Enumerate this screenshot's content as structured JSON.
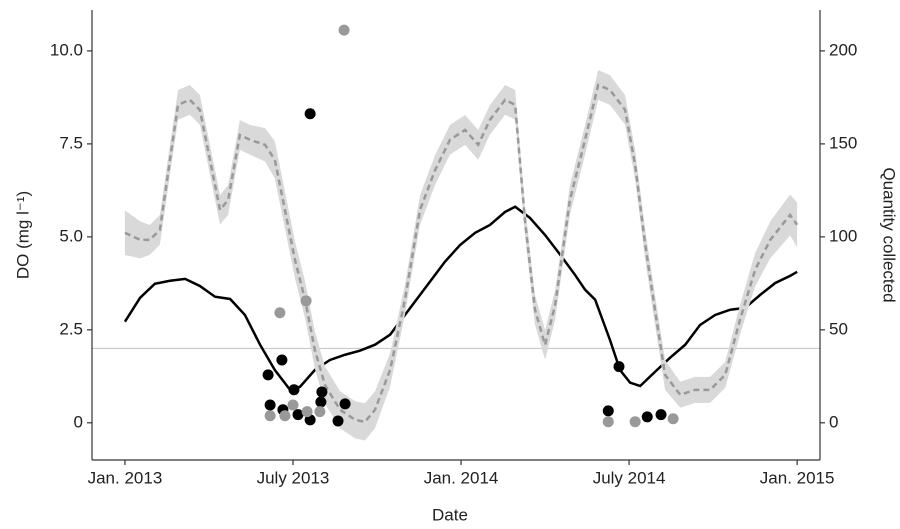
{
  "chart_data": {
    "type": "line",
    "xlabel": "Date",
    "ylabel": "DO (mg l⁻¹)",
    "y2label": "Quantity collected",
    "xlim": [
      2012.902,
      2015.068
    ],
    "xticks": [
      {
        "value": 2013,
        "label": "Jan. 2013"
      },
      {
        "value": 2013.5,
        "label": "July 2013"
      },
      {
        "value": 2014,
        "label": "Jan. 2014"
      },
      {
        "value": 2014.5,
        "label": "July 2014"
      },
      {
        "value": 2015,
        "label": "Jan. 2015"
      }
    ],
    "ylim": [
      -1,
      11.1
    ],
    "yticks": [
      0,
      2.5,
      {
        "value": 5,
        "label": "5.0"
      },
      7.5,
      {
        "value": 10,
        "label": "10.0"
      }
    ],
    "y2lim": [
      -20,
      222
    ],
    "y2ticks": [
      0,
      50,
      100,
      150,
      200
    ],
    "hline": {
      "value": 2,
      "color": "#c8c8c8"
    },
    "series": [
      {
        "type": "line",
        "color": "#000000",
        "x": [
          2013.0,
          2013.045,
          2013.089,
          2013.134,
          2013.179,
          2013.223,
          2013.268,
          2013.313,
          2013.357,
          2013.402,
          2013.446,
          2013.491,
          2013.521,
          2013.565,
          2013.61,
          2013.655,
          2013.699,
          2013.744,
          2013.789,
          2013.833,
          2013.878,
          2013.923,
          2013.952,
          2013.997,
          2014.042,
          2014.086,
          2014.131,
          2014.161,
          2014.205,
          2014.25,
          2014.295,
          2014.339,
          2014.369,
          2014.399,
          2014.443,
          2014.473,
          2014.503,
          2014.533,
          2014.577,
          2014.622,
          2014.667,
          2014.711,
          2014.756,
          2014.801,
          2014.845,
          2014.89,
          2014.935,
          2014.979,
          2015.0
        ],
        "values": [
          2.72,
          3.36,
          3.74,
          3.82,
          3.87,
          3.68,
          3.39,
          3.33,
          2.9,
          2.1,
          1.42,
          0.89,
          0.97,
          1.42,
          1.69,
          1.83,
          1.94,
          2.1,
          2.37,
          2.9,
          3.44,
          3.98,
          4.33,
          4.78,
          5.11,
          5.32,
          5.67,
          5.81,
          5.51,
          5.05,
          4.52,
          3.98,
          3.58,
          3.31,
          2.23,
          1.42,
          1.08,
          0.99,
          1.37,
          1.75,
          2.1,
          2.63,
          2.9,
          3.04,
          3.09,
          3.44,
          3.76,
          3.95,
          4.06
        ]
      },
      {
        "type": "line",
        "color": "#999999",
        "band_color": "#d9d9d9",
        "axis": "y2",
        "dashed": true,
        "x": [
          2013.0,
          2013.045,
          2013.074,
          2013.104,
          2013.134,
          2013.158,
          2013.193,
          2013.223,
          2013.253,
          2013.283,
          2013.307,
          2013.342,
          2013.372,
          2013.417,
          2013.446,
          2013.476,
          2013.506,
          2013.536,
          2013.565,
          2013.595,
          2013.64,
          2013.685,
          2013.714,
          2013.744,
          2013.789,
          2013.833,
          2013.878,
          2013.923,
          2013.967,
          2014.012,
          2014.051,
          2014.086,
          2014.131,
          2014.161,
          2014.19,
          2014.22,
          2014.25,
          2014.28,
          2014.324,
          2014.369,
          2014.408,
          2014.443,
          2014.488,
          2014.518,
          2014.548,
          2014.577,
          2014.607,
          2014.652,
          2014.696,
          2014.741,
          2014.786,
          2014.83,
          2014.875,
          2014.92,
          2014.979,
          2015.0
        ],
        "values": [
          102.2,
          98.4,
          98.4,
          103.8,
          141.4,
          171.0,
          173.7,
          168.3,
          141.4,
          114.5,
          119.9,
          154.8,
          152.2,
          149.5,
          141.4,
          114.5,
          87.6,
          66.1,
          39.2,
          20.4,
          7.0,
          1.6,
          0.5,
          7.0,
          28.5,
          66.1,
          114.5,
          136.0,
          152.2,
          157.5,
          149.5,
          162.9,
          173.7,
          171.0,
          109.1,
          60.8,
          41.9,
          63.4,
          119.9,
          152.2,
          181.7,
          179.0,
          168.3,
          138.7,
          95.7,
          60.8,
          25.8,
          15.1,
          17.7,
          17.7,
          25.8,
          55.4,
          82.3,
          98.4,
          111.8,
          106.5
        ],
        "error": [
          12,
          10,
          8,
          8,
          8,
          8,
          8,
          8,
          8,
          8,
          8,
          8,
          8,
          9,
          10,
          10,
          10,
          10,
          10,
          10,
          10,
          10,
          10,
          10,
          9,
          8,
          8,
          8,
          8,
          8,
          8,
          8,
          8,
          8,
          8,
          8,
          8,
          8,
          8,
          8,
          8,
          8,
          8,
          8,
          8,
          8,
          8,
          7,
          7,
          7,
          7,
          8,
          9,
          10,
          11,
          12
        ]
      },
      {
        "type": "scatter",
        "color": "#000000",
        "x": [
          2013.426,
          2013.467,
          2013.432,
          2013.47,
          2013.503,
          2013.515,
          2013.551,
          2013.583,
          2013.586,
          2013.551,
          2013.634,
          2013.655,
          2014.47,
          2014.438,
          2014.554,
          2014.595
        ],
        "values": [
          1.29,
          1.69,
          0.48,
          0.35,
          0.89,
          0.22,
          0.08,
          0.56,
          0.83,
          8.31,
          0.05,
          0.51,
          1.51,
          0.32,
          0.16,
          0.22
        ]
      },
      {
        "type": "scatter",
        "color": "#999999",
        "x": [
          2013.461,
          2013.539,
          2013.5,
          2013.432,
          2013.476,
          2013.542,
          2013.58,
          2013.652,
          2014.438,
          2014.518,
          2014.631
        ],
        "values": [
          2.96,
          3.28,
          0.48,
          0.19,
          0.19,
          0.3,
          0.3,
          10.56,
          0.03,
          0.03,
          0.11
        ]
      }
    ]
  }
}
